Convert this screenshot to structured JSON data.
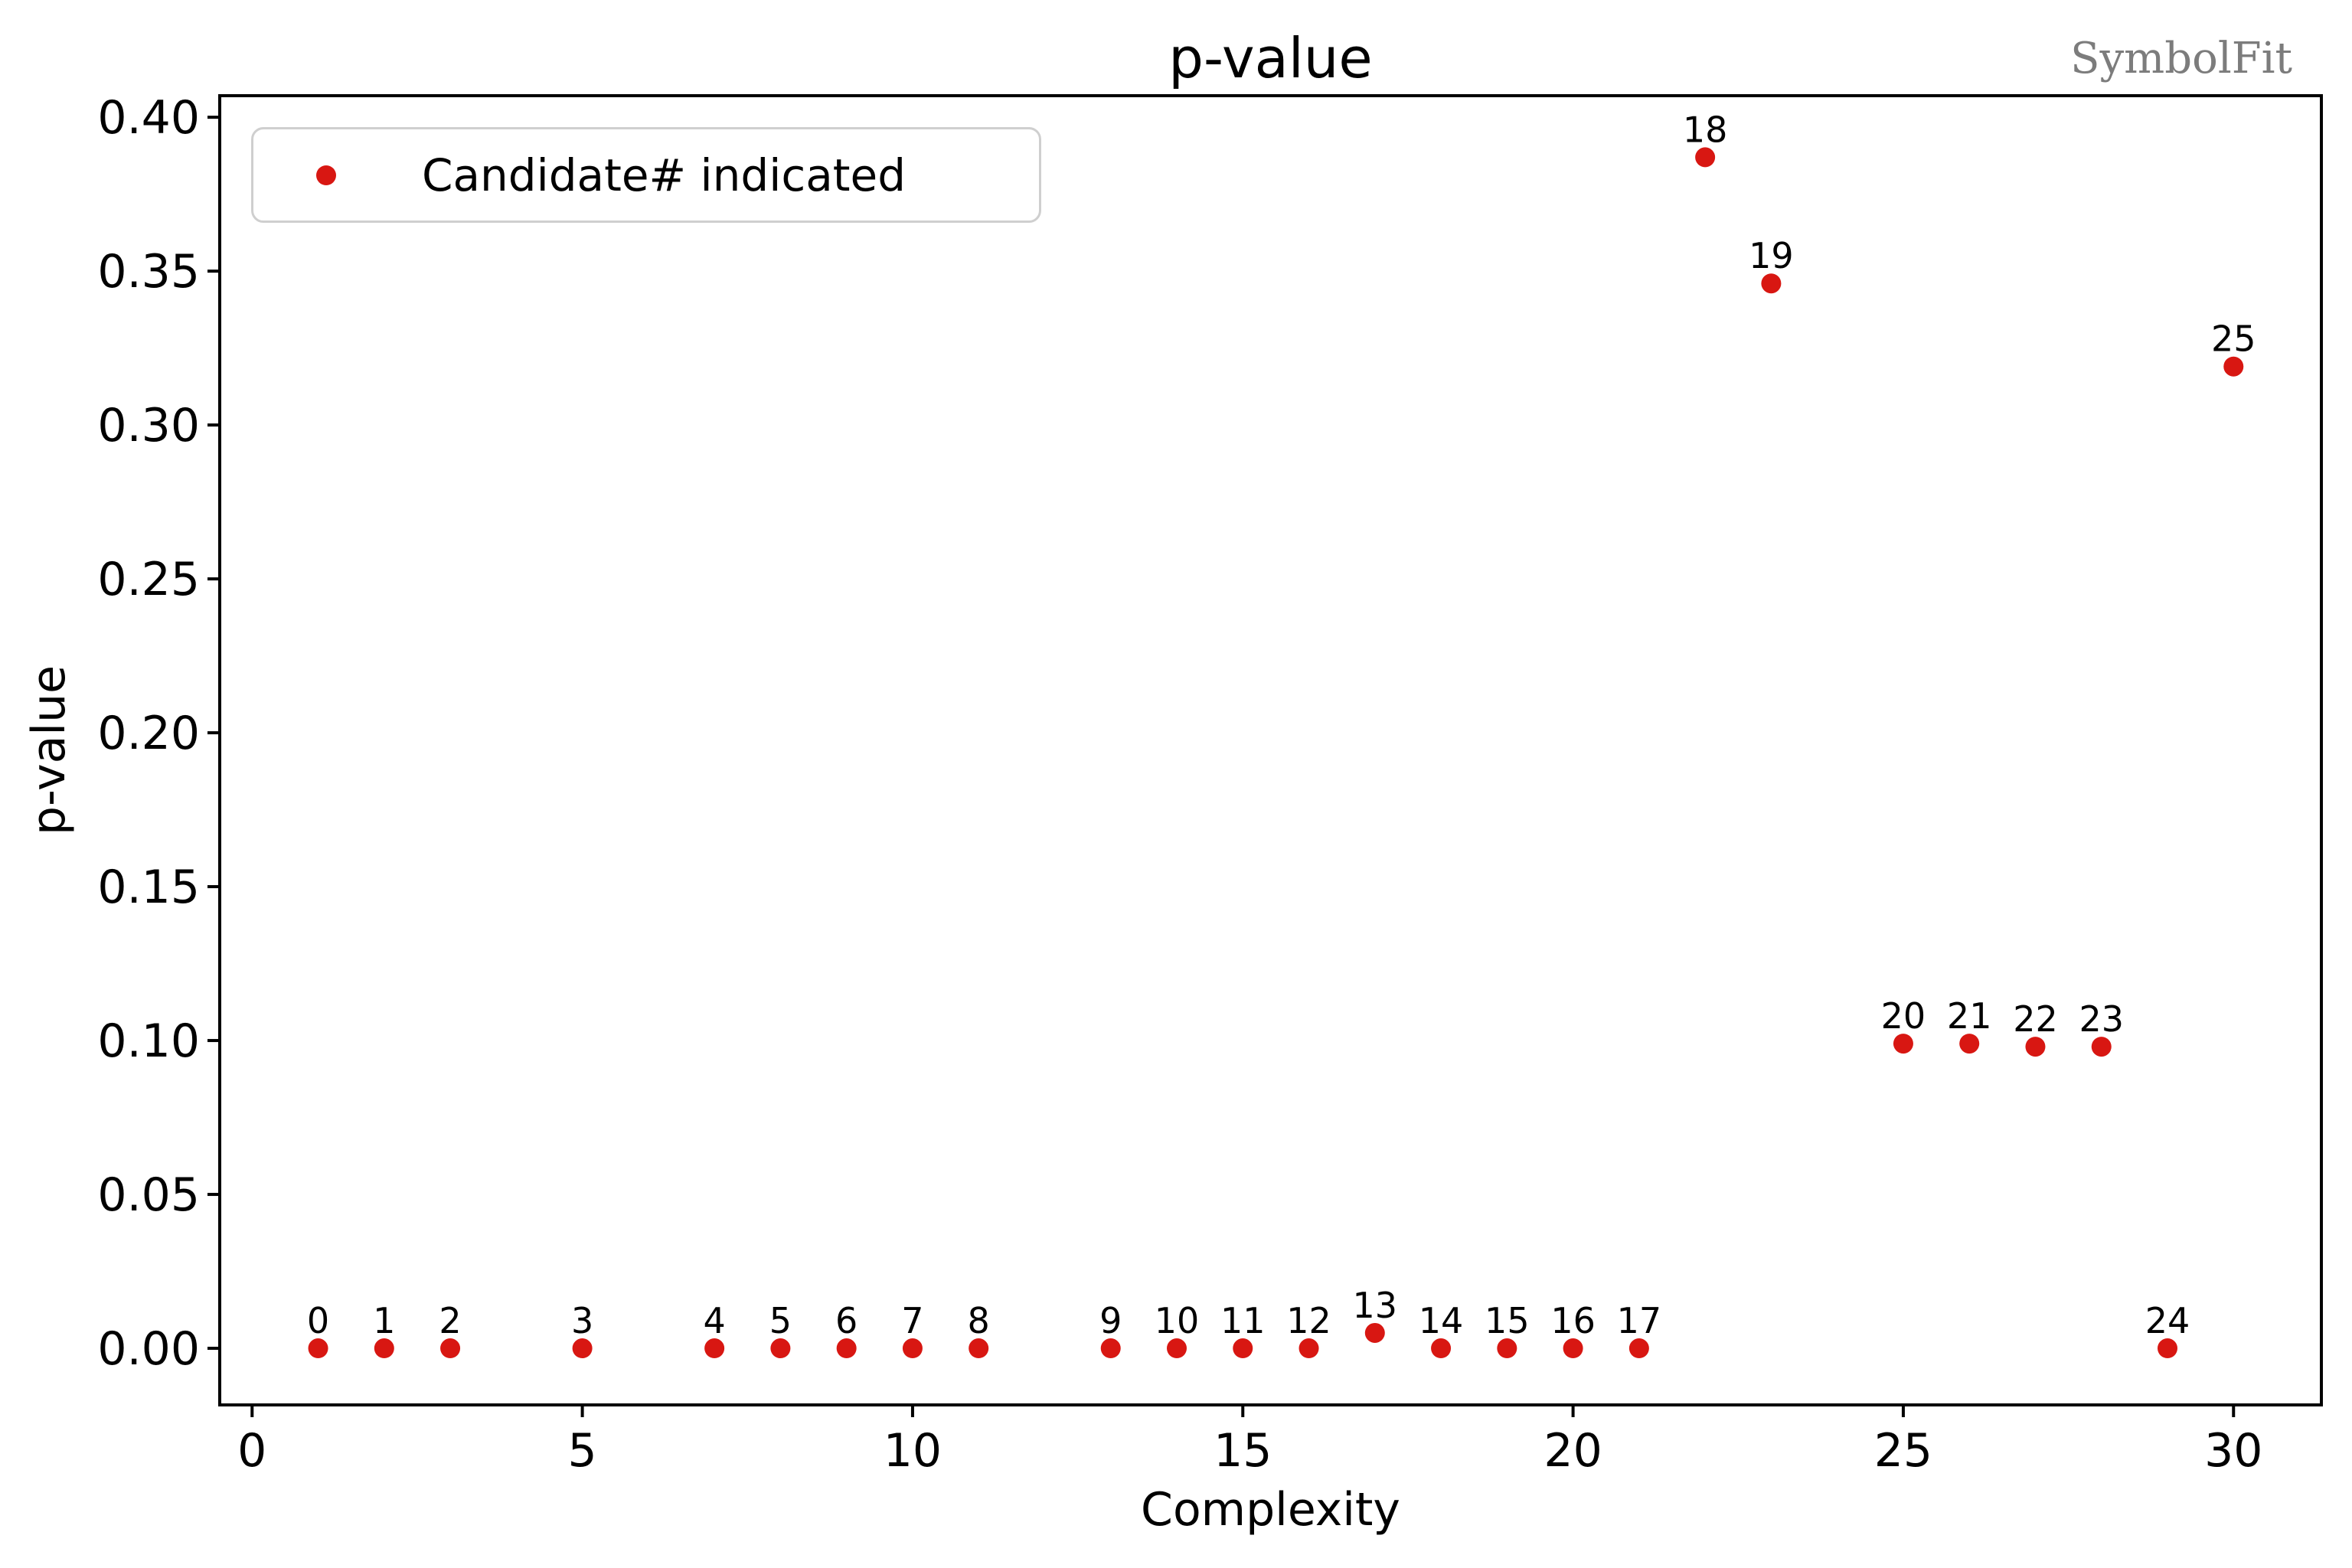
{
  "watermark": "SymbolFit",
  "colors": {
    "point_red": "#d81712",
    "annotation_text": "#000000",
    "axis_black": "#000000",
    "watermark_gray": "#7c7c7c",
    "legend_border": "#cfcfcf",
    "background": "#ffffff"
  },
  "chart_data": {
    "type": "scatter",
    "title": "p-value",
    "xlabel": "Complexity",
    "ylabel": "p-value",
    "xlim": [
      -0.49,
      31.33
    ],
    "ylim": [
      -0.0184,
      0.407
    ],
    "grid": false,
    "legend": {
      "label": "Candidate# indicated",
      "position": "upper left",
      "marker": "red-dot-icon"
    },
    "x_ticks": [
      {
        "value": 0,
        "label": "0"
      },
      {
        "value": 5,
        "label": "5"
      },
      {
        "value": 10,
        "label": "10"
      },
      {
        "value": 15,
        "label": "15"
      },
      {
        "value": 20,
        "label": "20"
      },
      {
        "value": 25,
        "label": "25"
      },
      {
        "value": 30,
        "label": "30"
      }
    ],
    "y_ticks": [
      {
        "value": 0.0,
        "label": "0.00"
      },
      {
        "value": 0.05,
        "label": "0.05"
      },
      {
        "value": 0.1,
        "label": "0.10"
      },
      {
        "value": 0.15,
        "label": "0.15"
      },
      {
        "value": 0.2,
        "label": "0.20"
      },
      {
        "value": 0.25,
        "label": "0.25"
      },
      {
        "value": 0.3,
        "label": "0.30"
      },
      {
        "value": 0.35,
        "label": "0.35"
      },
      {
        "value": 0.4,
        "label": "0.40"
      }
    ],
    "points": [
      {
        "candidate": "0",
        "complexity": 1,
        "p_value": 0.0
      },
      {
        "candidate": "1",
        "complexity": 2,
        "p_value": 0.0
      },
      {
        "candidate": "2",
        "complexity": 3,
        "p_value": 0.0
      },
      {
        "candidate": "3",
        "complexity": 5,
        "p_value": 0.0
      },
      {
        "candidate": "4",
        "complexity": 7,
        "p_value": 0.0
      },
      {
        "candidate": "5",
        "complexity": 8,
        "p_value": 0.0
      },
      {
        "candidate": "6",
        "complexity": 9,
        "p_value": 0.0
      },
      {
        "candidate": "7",
        "complexity": 10,
        "p_value": 0.0
      },
      {
        "candidate": "8",
        "complexity": 11,
        "p_value": 0.0
      },
      {
        "candidate": "9",
        "complexity": 13,
        "p_value": 0.0
      },
      {
        "candidate": "10",
        "complexity": 14,
        "p_value": 0.0
      },
      {
        "candidate": "11",
        "complexity": 15,
        "p_value": 0.0
      },
      {
        "candidate": "12",
        "complexity": 16,
        "p_value": 0.0
      },
      {
        "candidate": "13",
        "complexity": 17,
        "p_value": 0.005
      },
      {
        "candidate": "14",
        "complexity": 18,
        "p_value": 0.0
      },
      {
        "candidate": "15",
        "complexity": 19,
        "p_value": 0.0
      },
      {
        "candidate": "16",
        "complexity": 20,
        "p_value": 0.0
      },
      {
        "candidate": "17",
        "complexity": 21,
        "p_value": 0.0
      },
      {
        "candidate": "18",
        "complexity": 22,
        "p_value": 0.387
      },
      {
        "candidate": "19",
        "complexity": 23,
        "p_value": 0.346
      },
      {
        "candidate": "20",
        "complexity": 25,
        "p_value": 0.099
      },
      {
        "candidate": "21",
        "complexity": 26,
        "p_value": 0.099
      },
      {
        "candidate": "22",
        "complexity": 27,
        "p_value": 0.098
      },
      {
        "candidate": "23",
        "complexity": 28,
        "p_value": 0.098
      },
      {
        "candidate": "24",
        "complexity": 29,
        "p_value": 0.0
      },
      {
        "candidate": "25",
        "complexity": 30,
        "p_value": 0.319
      }
    ]
  }
}
